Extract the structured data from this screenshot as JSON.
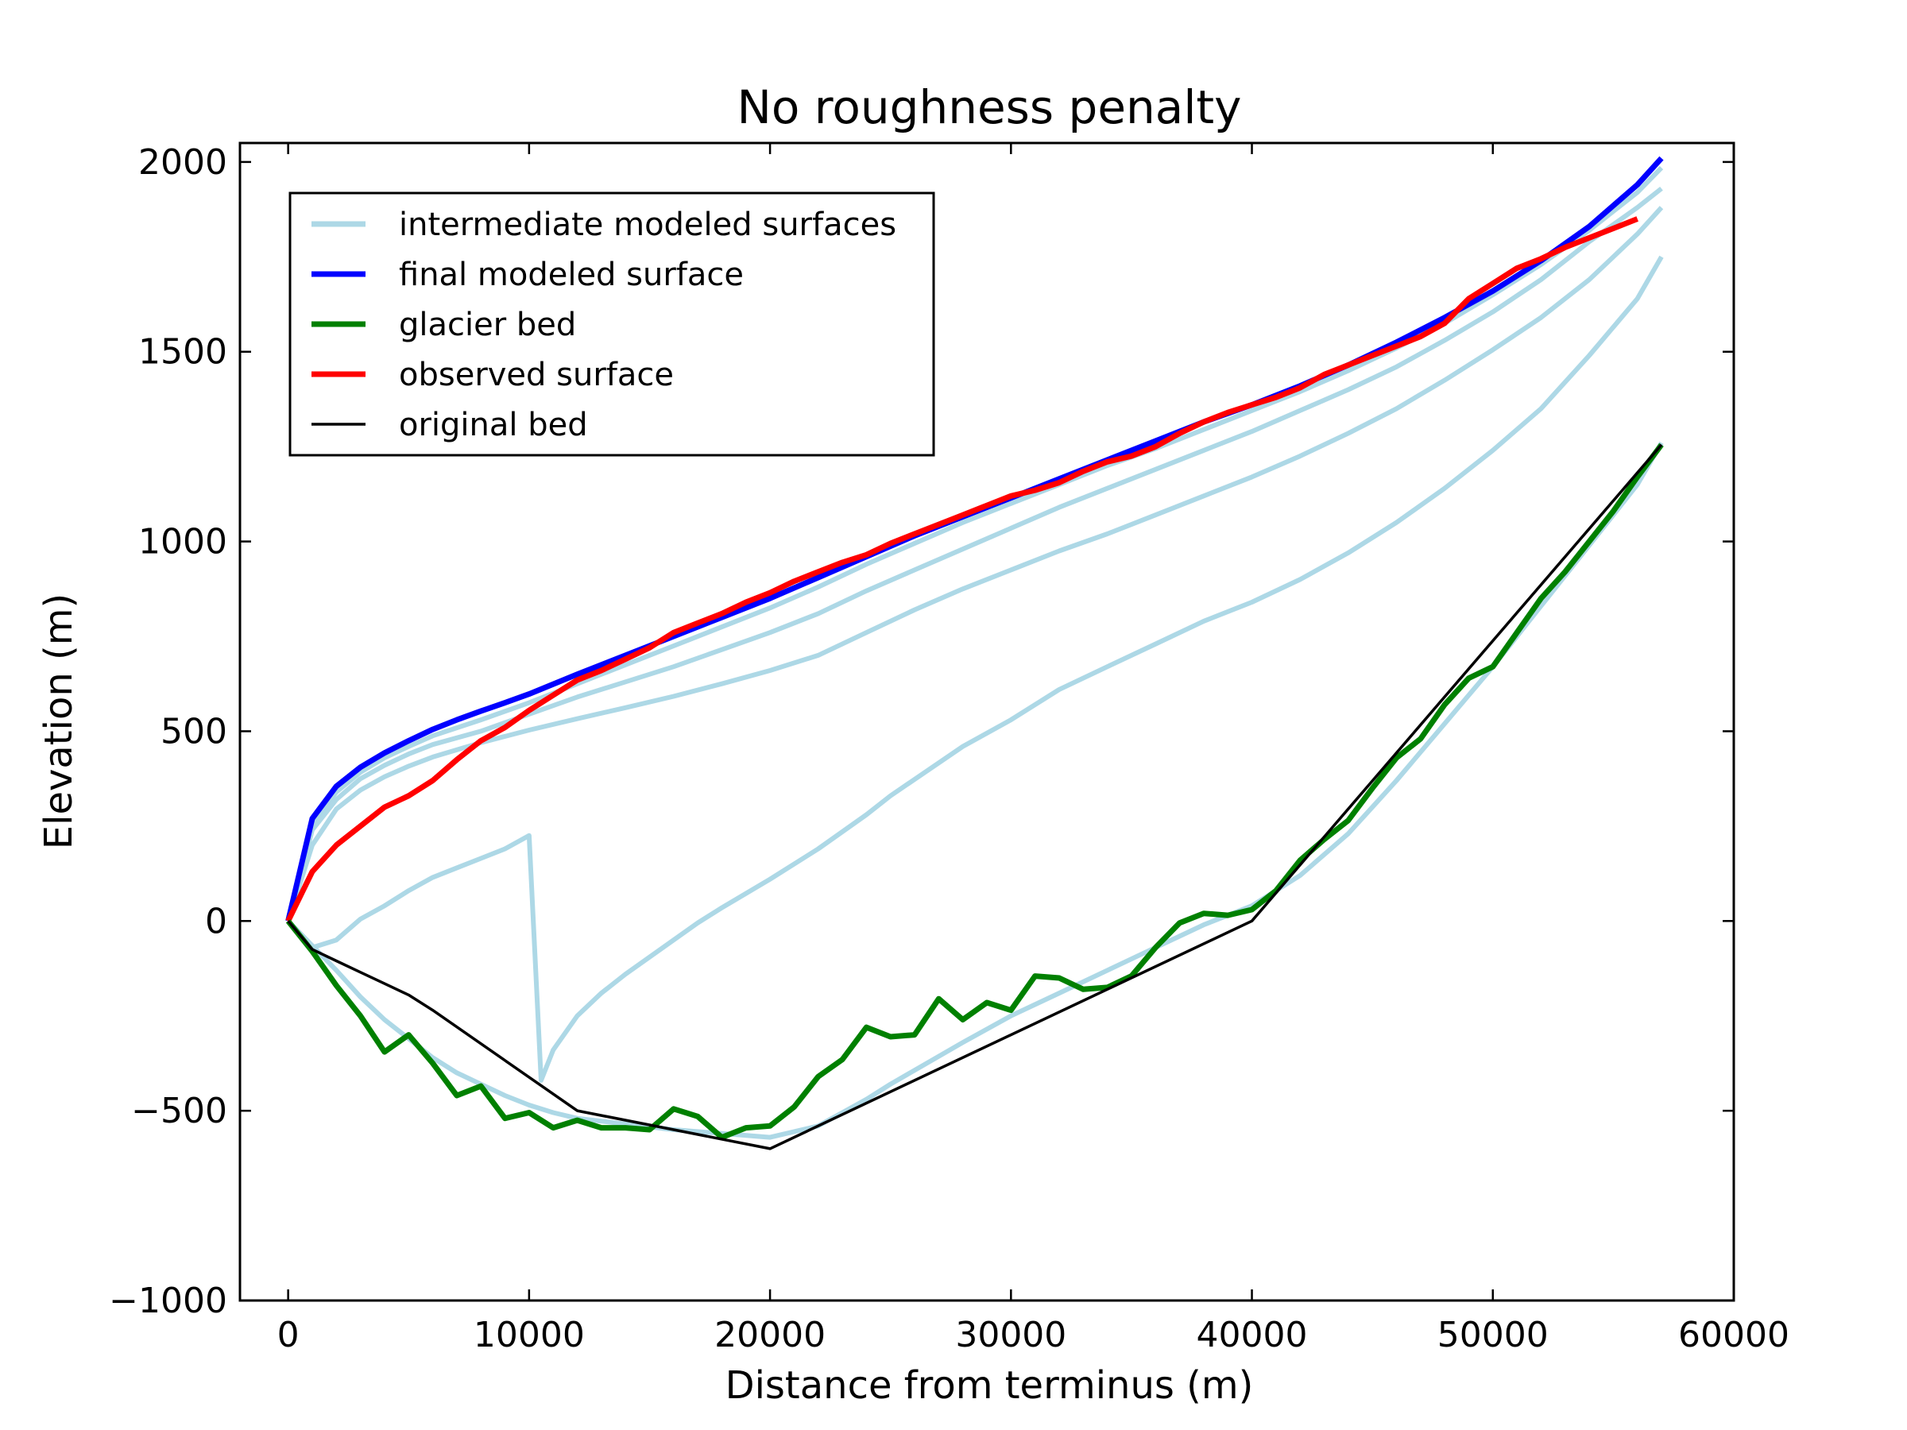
{
  "chart_data": {
    "type": "line",
    "title": "No roughness penalty",
    "xlabel": "Distance from terminus (m)",
    "ylabel": "Elevation (m)",
    "xlim": [
      -2000,
      60000
    ],
    "ylim": [
      -1000,
      2050
    ],
    "xticks": [
      0,
      10000,
      20000,
      30000,
      40000,
      50000,
      60000
    ],
    "xtick_labels": [
      "0",
      "10000",
      "20000",
      "30000",
      "40000",
      "50000",
      "60000"
    ],
    "yticks": [
      -1000,
      -500,
      0,
      500,
      1000,
      1500,
      2000
    ],
    "ytick_labels": [
      "−1000",
      "−500",
      "0",
      "500",
      "1000",
      "1500",
      "2000"
    ],
    "grid": false,
    "legend_position": "top-left",
    "legend": [
      {
        "label": "intermediate modeled surfaces",
        "color": "#add8e6"
      },
      {
        "label": "final modeled surface",
        "color": "#0000ff"
      },
      {
        "label": "glacier bed",
        "color": "#008000"
      },
      {
        "label": "observed surface",
        "color": "#ff0000"
      },
      {
        "label": "original bed",
        "color": "#000000"
      }
    ],
    "series": [
      {
        "role": "intermediate",
        "color": "#add8e6",
        "x": [
          0,
          1000,
          2000,
          3000,
          4000,
          5000,
          6000,
          7000,
          8000,
          9000,
          10000,
          10500,
          11000,
          12000,
          13000,
          14000,
          15000,
          16000,
          17000,
          18000,
          20000,
          22000,
          24000,
          25000,
          28000,
          30000,
          32000,
          34000,
          36000,
          38000,
          40000,
          42000,
          44000,
          46000,
          48000,
          50000,
          52000,
          54000,
          56000,
          57000
        ],
        "y": [
          0,
          -70,
          -50,
          5,
          40,
          80,
          115,
          140,
          165,
          190,
          225,
          -420,
          -340,
          -250,
          -190,
          -140,
          -95,
          -50,
          -5,
          35,
          110,
          190,
          280,
          330,
          460,
          530,
          610,
          670,
          730,
          790,
          840,
          900,
          970,
          1050,
          1140,
          1240,
          1350,
          1490,
          1640,
          1750
        ]
      },
      {
        "role": "intermediate",
        "color": "#add8e6",
        "x": [
          0,
          1000,
          2000,
          3000,
          4000,
          5000,
          6000,
          7000,
          8000,
          9000,
          10000,
          11000,
          12000,
          14000,
          16000,
          18000,
          20000,
          22000,
          24000,
          25000,
          28000,
          30000,
          32000,
          34000,
          36000,
          38000,
          40000,
          42000,
          44000,
          46000,
          48000,
          50000,
          52000,
          54000,
          56000,
          57000
        ],
        "y": [
          0,
          -65,
          -130,
          -200,
          -260,
          -310,
          -360,
          -400,
          -430,
          -460,
          -485,
          -505,
          -520,
          -535,
          -550,
          -560,
          -570,
          -540,
          -470,
          -430,
          -320,
          -250,
          -190,
          -130,
          -70,
          -10,
          40,
          120,
          230,
          370,
          520,
          670,
          830,
          990,
          1150,
          1260
        ]
      },
      {
        "role": "intermediate",
        "color": "#add8e6",
        "x": [
          0,
          1000,
          2000,
          3000,
          4000,
          5000,
          6000,
          8000,
          10000,
          12000,
          14000,
          16000,
          18000,
          20000,
          22000,
          24000,
          26000,
          28000,
          30000,
          32000,
          34000,
          36000,
          38000,
          40000,
          42000,
          44000,
          46000,
          48000,
          50000,
          52000,
          54000,
          56000,
          57000
        ],
        "y": [
          0,
          200,
          295,
          345,
          380,
          408,
          432,
          470,
          503,
          533,
          562,
          592,
          625,
          660,
          700,
          760,
          820,
          875,
          925,
          975,
          1020,
          1070,
          1120,
          1170,
          1225,
          1285,
          1350,
          1425,
          1505,
          1590,
          1690,
          1810,
          1880
        ]
      },
      {
        "role": "intermediate",
        "color": "#add8e6",
        "x": [
          0,
          1000,
          2000,
          3000,
          4000,
          5000,
          6000,
          8000,
          10000,
          12000,
          14000,
          16000,
          18000,
          20000,
          22000,
          24000,
          26000,
          28000,
          30000,
          32000,
          34000,
          36000,
          38000,
          40000,
          42000,
          44000,
          46000,
          48000,
          50000,
          52000,
          54000,
          56000,
          57000
        ],
        "y": [
          0,
          240,
          320,
          375,
          410,
          440,
          465,
          500,
          545,
          590,
          630,
          670,
          715,
          760,
          810,
          870,
          925,
          980,
          1035,
          1090,
          1140,
          1190,
          1240,
          1290,
          1345,
          1400,
          1460,
          1530,
          1605,
          1690,
          1790,
          1880,
          1930
        ]
      },
      {
        "role": "intermediate",
        "color": "#add8e6",
        "x": [
          0,
          1000,
          2000,
          3000,
          4000,
          5000,
          6000,
          8000,
          10000,
          12000,
          14000,
          16000,
          18000,
          20000,
          22000,
          24000,
          26000,
          28000,
          30000,
          32000,
          34000,
          36000,
          38000,
          40000,
          42000,
          44000,
          46000,
          48000,
          50000,
          52000,
          54000,
          56000,
          57000
        ],
        "y": [
          0,
          255,
          340,
          392,
          430,
          460,
          488,
          530,
          575,
          625,
          675,
          725,
          775,
          825,
          880,
          940,
          995,
          1050,
          1100,
          1150,
          1200,
          1245,
          1295,
          1345,
          1395,
          1450,
          1510,
          1575,
          1650,
          1730,
          1820,
          1920,
          1985
        ]
      },
      {
        "role": "final",
        "name": "final modeled surface",
        "color": "#0000ff",
        "x": [
          0,
          1000,
          2000,
          3000,
          4000,
          5000,
          6000,
          7000,
          8000,
          9000,
          10000,
          12000,
          14000,
          16000,
          18000,
          20000,
          22000,
          24000,
          26000,
          28000,
          30000,
          32000,
          34000,
          36000,
          38000,
          40000,
          42000,
          44000,
          46000,
          48000,
          50000,
          52000,
          54000,
          56000,
          57000
        ],
        "y": [
          0,
          270,
          355,
          405,
          443,
          475,
          505,
          530,
          553,
          575,
          598,
          650,
          700,
          750,
          800,
          850,
          905,
          960,
          1015,
          1065,
          1115,
          1165,
          1215,
          1265,
          1315,
          1360,
          1410,
          1465,
          1525,
          1590,
          1660,
          1740,
          1830,
          1940,
          2010
        ]
      },
      {
        "role": "observed",
        "name": "observed surface",
        "color": "#ff0000",
        "x": [
          0,
          1000,
          2000,
          3000,
          4000,
          5000,
          6000,
          7000,
          8000,
          9000,
          10000,
          11000,
          12000,
          13000,
          14000,
          15000,
          16000,
          17000,
          18000,
          19000,
          20000,
          21000,
          22000,
          23000,
          24000,
          25000,
          26000,
          27000,
          28000,
          29000,
          30000,
          31000,
          32000,
          33000,
          34000,
          35000,
          36000,
          37000,
          38000,
          39000,
          40000,
          41000,
          42000,
          43000,
          44000,
          45000,
          46000,
          47000,
          48000,
          49000,
          50000,
          51000,
          52000,
          53000,
          54000,
          55000,
          56000
        ],
        "y": [
          0,
          130,
          200,
          250,
          300,
          330,
          370,
          425,
          475,
          510,
          555,
          595,
          635,
          660,
          690,
          720,
          760,
          785,
          810,
          840,
          865,
          895,
          920,
          945,
          965,
          995,
          1020,
          1045,
          1070,
          1095,
          1120,
          1135,
          1155,
          1185,
          1210,
          1225,
          1250,
          1285,
          1315,
          1340,
          1360,
          1380,
          1405,
          1440,
          1465,
          1490,
          1515,
          1540,
          1575,
          1640,
          1680,
          1720,
          1745,
          1775,
          1800,
          1825,
          1850
        ]
      },
      {
        "role": "bed",
        "name": "glacier bed",
        "color": "#008000",
        "x": [
          0,
          1000,
          2000,
          3000,
          4000,
          5000,
          6000,
          7000,
          8000,
          9000,
          10000,
          11000,
          12000,
          13000,
          14000,
          15000,
          16000,
          17000,
          18000,
          19000,
          20000,
          21000,
          22000,
          23000,
          24000,
          25000,
          26000,
          27000,
          28000,
          29000,
          30000,
          31000,
          32000,
          33000,
          34000,
          35000,
          36000,
          37000,
          38000,
          39000,
          40000,
          41000,
          42000,
          43000,
          44000,
          45000,
          46000,
          47000,
          48000,
          49000,
          50000,
          51000,
          52000,
          53000,
          54000,
          55000,
          56000,
          57000
        ],
        "y": [
          0,
          -80,
          -170,
          -250,
          -345,
          -300,
          -375,
          -460,
          -435,
          -520,
          -505,
          -545,
          -525,
          -545,
          -545,
          -550,
          -495,
          -515,
          -570,
          -545,
          -540,
          -490,
          -410,
          -365,
          -280,
          -305,
          -300,
          -205,
          -260,
          -215,
          -235,
          -145,
          -150,
          -180,
          -175,
          -145,
          -70,
          -5,
          20,
          15,
          30,
          80,
          160,
          215,
          265,
          350,
          430,
          480,
          570,
          640,
          670,
          760,
          850,
          920,
          1000,
          1080,
          1170,
          1255
        ]
      },
      {
        "role": "original",
        "name": "original bed",
        "color": "#000000",
        "x": [
          0,
          1000,
          2000,
          3000,
          4000,
          5000,
          6000,
          12000,
          20000,
          40000,
          57000
        ],
        "y": [
          0,
          -75,
          -105,
          -135,
          -165,
          -195,
          -235,
          -500,
          -600,
          0,
          1255
        ]
      }
    ]
  }
}
